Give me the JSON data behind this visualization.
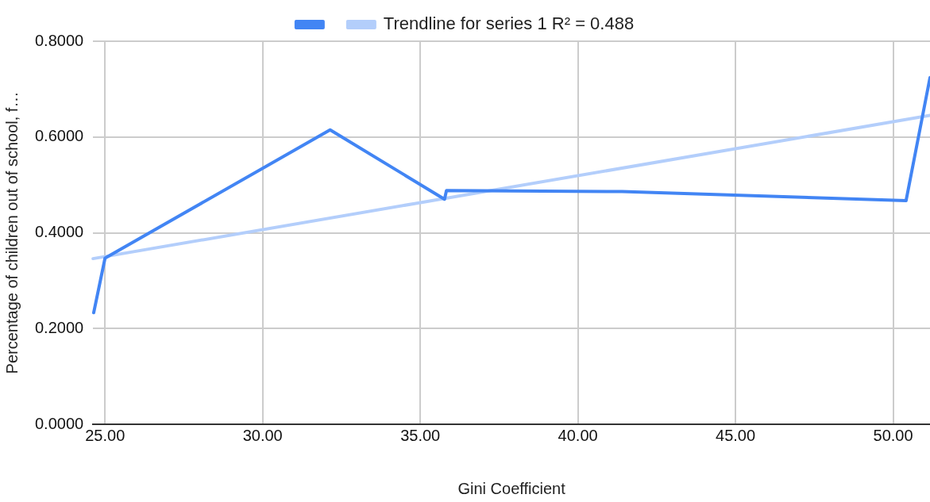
{
  "chart_data": {
    "type": "line",
    "xlabel": "Gini Coefficient",
    "ylabel": "Percentage of children out of school, f…",
    "xlim": [
      24.62,
      51.17
    ],
    "ylim": [
      0,
      0.8
    ],
    "xticks": [
      {
        "value": 25,
        "label": "25.00"
      },
      {
        "value": 30,
        "label": "30.00"
      },
      {
        "value": 35,
        "label": "35.00"
      },
      {
        "value": 40,
        "label": "40.00"
      },
      {
        "value": 45,
        "label": "45.00"
      },
      {
        "value": 50,
        "label": "50.00"
      }
    ],
    "yticks": [
      {
        "value": 0,
        "label": "0.0000"
      },
      {
        "value": 0.2,
        "label": "0.2000"
      },
      {
        "value": 0.4,
        "label": "0.4000"
      },
      {
        "value": 0.6,
        "label": "0.6000"
      },
      {
        "value": 0.8,
        "label": "0.8000"
      }
    ],
    "grid": true,
    "legend": "top",
    "marker": "none",
    "series": [
      {
        "color": "#4285f4",
        "x": [
          24.64,
          25.0,
          32.14,
          35.77,
          35.83,
          41.4,
          50.41,
          51.17
        ],
        "values": [
          0.233,
          0.347,
          0.615,
          0.47,
          0.488,
          0.486,
          0.467,
          0.724
        ]
      },
      {
        "name": "Trendline for series 1 R² = 0.488",
        "color": "#b3cefb",
        "x": [
          24.62,
          51.17
        ],
        "values": [
          0.346,
          0.645
        ]
      }
    ]
  }
}
